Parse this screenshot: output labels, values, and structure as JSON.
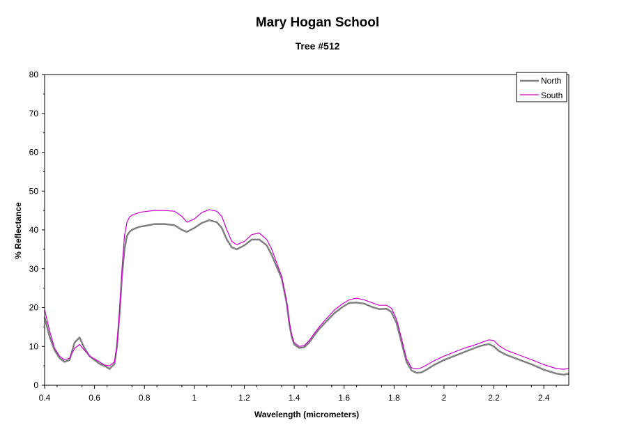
{
  "chart_data": {
    "type": "line",
    "title": "Mary Hogan School",
    "subtitle": "Tree #512",
    "xlabel": "Wavelength (micrometers)",
    "ylabel": "% Reflectance",
    "xlim": [
      0.4,
      2.5
    ],
    "ylim": [
      0,
      80
    ],
    "x_ticks": [
      0.4,
      0.6,
      0.8,
      1,
      1.2,
      1.4,
      1.6,
      1.8,
      2,
      2.2,
      2.4
    ],
    "x_tick_labels": [
      "0.4",
      "0.6",
      "0.8",
      "1",
      "1.2",
      "1.4",
      "1.6",
      "1.8",
      "2",
      "2.2",
      "2.4"
    ],
    "y_ticks": [
      0,
      10,
      20,
      30,
      40,
      50,
      60,
      70,
      80
    ],
    "y_tick_labels": [
      "0",
      "10",
      "20",
      "30",
      "40",
      "50",
      "60",
      "70",
      "80"
    ],
    "grid": false,
    "legend_position": "top-right",
    "series": [
      {
        "name": "North",
        "color": "#7f7f7f",
        "x": [
          0.4,
          0.42,
          0.44,
          0.46,
          0.48,
          0.5,
          0.52,
          0.54,
          0.56,
          0.58,
          0.6,
          0.62,
          0.64,
          0.66,
          0.68,
          0.69,
          0.7,
          0.71,
          0.72,
          0.73,
          0.74,
          0.75,
          0.76,
          0.78,
          0.8,
          0.84,
          0.88,
          0.92,
          0.95,
          0.97,
          1.0,
          1.03,
          1.06,
          1.09,
          1.11,
          1.13,
          1.15,
          1.17,
          1.2,
          1.23,
          1.26,
          1.29,
          1.31,
          1.33,
          1.35,
          1.37,
          1.38,
          1.39,
          1.4,
          1.42,
          1.44,
          1.46,
          1.48,
          1.5,
          1.53,
          1.56,
          1.59,
          1.62,
          1.65,
          1.68,
          1.71,
          1.74,
          1.77,
          1.79,
          1.81,
          1.83,
          1.85,
          1.87,
          1.89,
          1.91,
          1.93,
          1.96,
          2.0,
          2.04,
          2.08,
          2.12,
          2.15,
          2.18,
          2.2,
          2.22,
          2.25,
          2.3,
          2.35,
          2.4,
          2.45,
          2.48,
          2.5
        ],
        "y": [
          17.5,
          12.5,
          9.0,
          7.0,
          6.0,
          6.5,
          11.0,
          12.3,
          9.5,
          7.5,
          6.5,
          5.5,
          5.0,
          4.2,
          5.5,
          10.0,
          18.0,
          28.0,
          35.0,
          38.5,
          39.5,
          40.0,
          40.3,
          40.8,
          41.0,
          41.5,
          41.5,
          41.2,
          40.0,
          39.5,
          40.5,
          41.8,
          42.5,
          42.0,
          40.5,
          37.5,
          35.5,
          35.0,
          36.0,
          37.5,
          37.5,
          36.0,
          33.5,
          30.5,
          27.5,
          21.0,
          16.0,
          12.5,
          10.5,
          9.6,
          9.8,
          11.0,
          12.8,
          14.5,
          16.5,
          18.5,
          20.0,
          21.2,
          21.3,
          21.0,
          20.2,
          19.6,
          19.7,
          18.8,
          16.0,
          11.0,
          6.0,
          3.8,
          3.2,
          3.3,
          4.0,
          5.2,
          6.5,
          7.5,
          8.5,
          9.5,
          10.2,
          10.6,
          10.0,
          8.8,
          7.8,
          6.6,
          5.4,
          4.0,
          3.0,
          2.7,
          3.0
        ]
      },
      {
        "name": "South",
        "color": "#cc00cc",
        "x": [
          0.4,
          0.42,
          0.44,
          0.46,
          0.48,
          0.5,
          0.52,
          0.54,
          0.56,
          0.58,
          0.6,
          0.62,
          0.64,
          0.66,
          0.68,
          0.69,
          0.7,
          0.71,
          0.72,
          0.73,
          0.74,
          0.75,
          0.76,
          0.78,
          0.8,
          0.84,
          0.88,
          0.92,
          0.95,
          0.97,
          1.0,
          1.03,
          1.06,
          1.09,
          1.11,
          1.13,
          1.15,
          1.17,
          1.2,
          1.23,
          1.26,
          1.29,
          1.31,
          1.33,
          1.35,
          1.37,
          1.38,
          1.39,
          1.4,
          1.42,
          1.44,
          1.46,
          1.48,
          1.5,
          1.53,
          1.56,
          1.59,
          1.62,
          1.65,
          1.68,
          1.71,
          1.74,
          1.77,
          1.79,
          1.81,
          1.83,
          1.85,
          1.87,
          1.89,
          1.91,
          1.93,
          1.96,
          2.0,
          2.04,
          2.08,
          2.12,
          2.15,
          2.18,
          2.2,
          2.22,
          2.25,
          2.3,
          2.35,
          2.4,
          2.45,
          2.48,
          2.5
        ],
        "y": [
          19.5,
          14.0,
          9.5,
          7.5,
          6.5,
          7.0,
          9.5,
          10.5,
          9.0,
          7.5,
          6.8,
          6.0,
          5.2,
          5.0,
          6.0,
          10.5,
          19.0,
          30.0,
          38.5,
          42.0,
          43.3,
          43.8,
          44.0,
          44.5,
          44.7,
          45.0,
          45.0,
          44.8,
          43.5,
          42.0,
          42.8,
          44.5,
          45.2,
          44.8,
          43.5,
          40.0,
          37.0,
          36.2,
          37.0,
          38.8,
          39.2,
          37.5,
          35.0,
          31.5,
          28.0,
          21.5,
          16.5,
          13.0,
          11.0,
          10.0,
          10.2,
          11.5,
          13.3,
          15.0,
          17.2,
          19.3,
          20.8,
          22.0,
          22.4,
          22.0,
          21.3,
          20.6,
          20.6,
          19.8,
          17.0,
          12.0,
          6.8,
          4.5,
          4.2,
          4.5,
          5.2,
          6.3,
          7.5,
          8.5,
          9.5,
          10.3,
          11.0,
          11.7,
          11.5,
          10.2,
          9.0,
          7.8,
          6.6,
          5.3,
          4.3,
          4.1,
          4.3
        ]
      }
    ]
  }
}
